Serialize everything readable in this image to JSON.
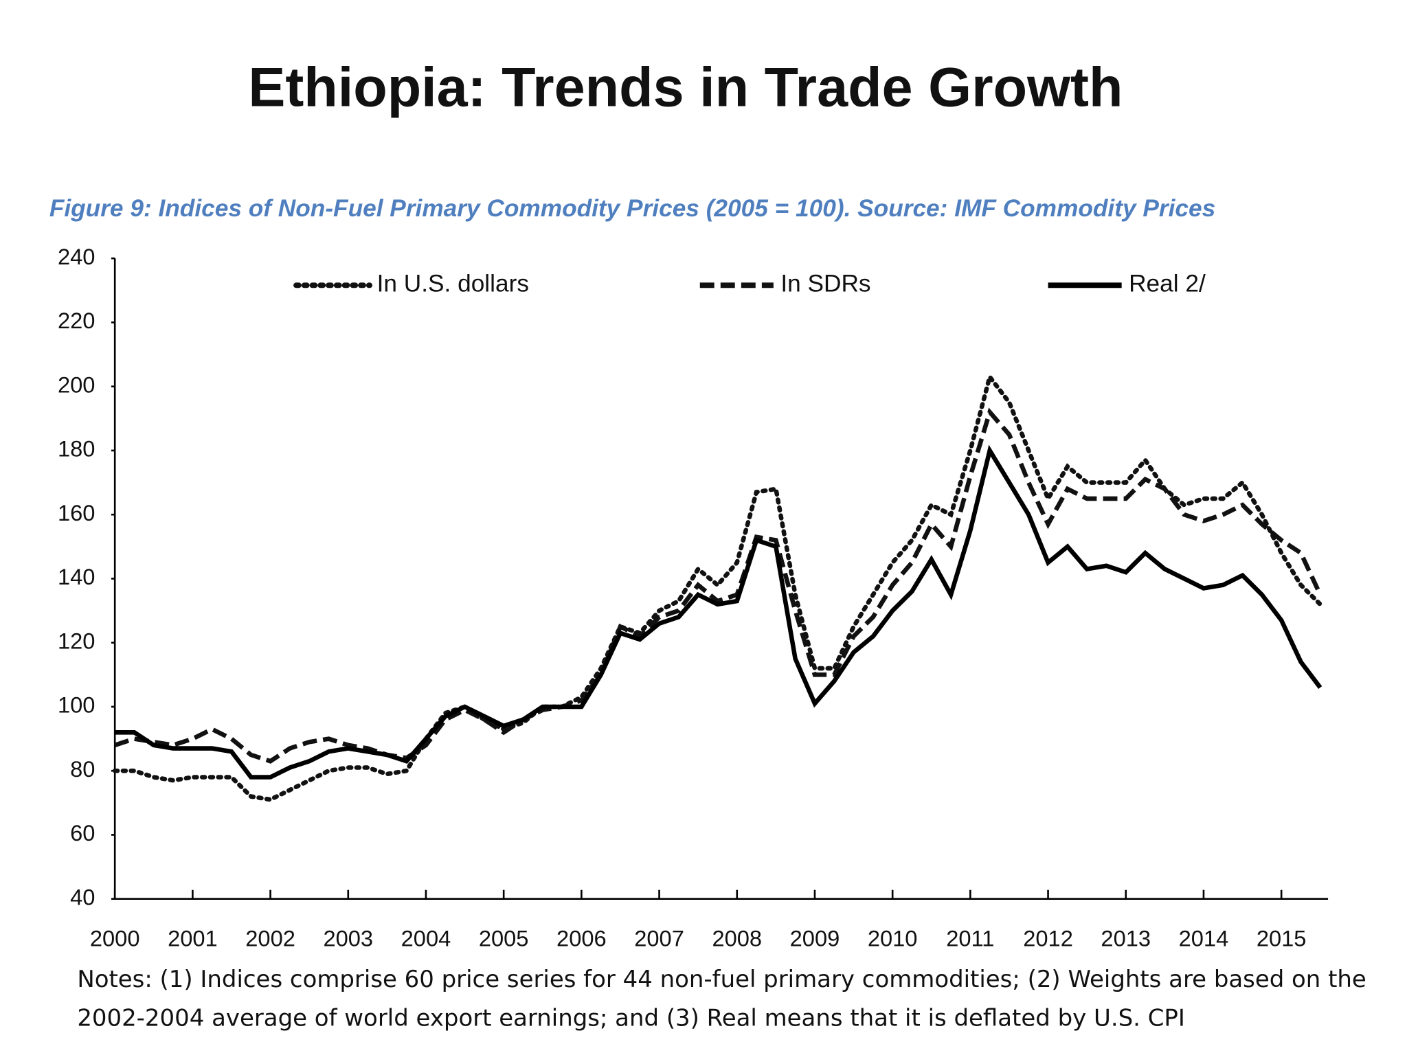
{
  "chart_data": {
    "type": "line",
    "title": "Ethiopia: Trends in Trade Growth",
    "subtitle": "Figure 9:  Indices of Non-Fuel Primary Commodity Prices (2005 = 100). Source: IMF Commodity Prices",
    "notes": [
      "Notes: (1) Indices comprise 60 price series for 44 non-fuel primary commodities; (2) Weights are based on the",
      "2002-2004 average of world export earnings; and (3) Real means that it is deflated by U.S. CPI"
    ],
    "x": [
      2000,
      2000.25,
      2000.5,
      2000.75,
      2001,
      2001.25,
      2001.5,
      2001.75,
      2002,
      2002.25,
      2002.5,
      2002.75,
      2003,
      2003.25,
      2003.5,
      2003.75,
      2004,
      2004.25,
      2004.5,
      2004.75,
      2005,
      2005.25,
      2005.5,
      2005.75,
      2006,
      2006.25,
      2006.5,
      2006.75,
      2007,
      2007.25,
      2007.5,
      2007.75,
      2008,
      2008.25,
      2008.5,
      2008.75,
      2009,
      2009.25,
      2009.5,
      2009.75,
      2010,
      2010.25,
      2010.5,
      2010.75,
      2011,
      2011.25,
      2011.5,
      2011.75,
      2012,
      2012.25,
      2012.5,
      2012.75,
      2013,
      2013.25,
      2013.5,
      2013.75,
      2014,
      2014.25,
      2014.5,
      2014.75,
      2015,
      2015.25,
      2015.5
    ],
    "series": [
      {
        "name": "In U.S. dollars",
        "color": "#111111",
        "dash": "dotted",
        "values": [
          80,
          80,
          78,
          77,
          78,
          78,
          78,
          72,
          71,
          74,
          77,
          80,
          81,
          81,
          79,
          80,
          90,
          98,
          100,
          96,
          93,
          95,
          100,
          100,
          103,
          112,
          125,
          123,
          130,
          133,
          143,
          138,
          145,
          167,
          168,
          135,
          112,
          112,
          125,
          135,
          145,
          152,
          163,
          160,
          180,
          203,
          195,
          180,
          165,
          175,
          170,
          170,
          170,
          177,
          168,
          163,
          165,
          165,
          170,
          160,
          148,
          138,
          132
        ]
      },
      {
        "name": "In SDRs",
        "color": "#111111",
        "dash": "dashed",
        "values": [
          88,
          90,
          89,
          88,
          90,
          93,
          90,
          85,
          83,
          87,
          89,
          90,
          88,
          87,
          85,
          84,
          88,
          96,
          99,
          96,
          92,
          96,
          99,
          100,
          102,
          110,
          125,
          122,
          128,
          130,
          138,
          133,
          135,
          153,
          152,
          130,
          110,
          110,
          122,
          128,
          138,
          145,
          157,
          150,
          172,
          192,
          185,
          170,
          157,
          168,
          165,
          165,
          165,
          171,
          168,
          160,
          158,
          160,
          163,
          157,
          152,
          148,
          135
        ]
      },
      {
        "name": "Real 2/",
        "color": "#000000",
        "dash": "solid",
        "values": [
          92,
          92,
          88,
          87,
          87,
          87,
          86,
          78,
          78,
          81,
          83,
          86,
          87,
          86,
          85,
          83,
          90,
          97,
          100,
          97,
          94,
          96,
          100,
          100,
          100,
          110,
          123,
          121,
          126,
          128,
          135,
          132,
          133,
          152,
          150,
          115,
          101,
          108,
          117,
          122,
          130,
          136,
          146,
          135,
          155,
          180,
          170,
          160,
          145,
          150,
          143,
          144,
          142,
          148,
          143,
          140,
          137,
          138,
          141,
          135,
          127,
          114,
          106
        ]
      }
    ],
    "xlim": [
      2000,
      2015.6
    ],
    "xticks": [
      2000,
      2001,
      2002,
      2003,
      2004,
      2005,
      2006,
      2007,
      2008,
      2009,
      2010,
      2011,
      2012,
      2013,
      2014,
      2015
    ],
    "ylim": [
      40,
      240
    ],
    "yticks": [
      40,
      60,
      80,
      100,
      120,
      140,
      160,
      180,
      200,
      220,
      240
    ],
    "grid": false
  }
}
